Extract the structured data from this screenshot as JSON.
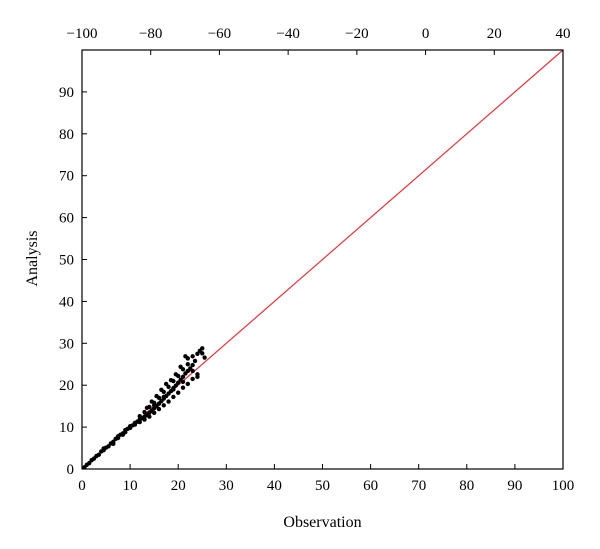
{
  "chart_data": {
    "type": "scatter",
    "xlabel": "Observation",
    "ylabel": "Analysis",
    "xlim": [
      0,
      100
    ],
    "ylim": [
      0,
      100
    ],
    "x_ticks": [
      0,
      10,
      20,
      30,
      40,
      50,
      60,
      70,
      80,
      90,
      100
    ],
    "y_ticks": [
      0,
      10,
      20,
      30,
      40,
      50,
      60,
      70,
      80,
      90
    ],
    "top_axis": {
      "lim": [
        -100,
        40
      ],
      "ticks": [
        -100,
        -80,
        -60,
        -40,
        -20,
        0,
        20,
        40
      ],
      "tick_labels": [
        "−100",
        "−80",
        "−60",
        "−40",
        "−20",
        "0",
        "20",
        "40"
      ]
    },
    "grid": false,
    "reference_line": {
      "from": [
        0,
        0
      ],
      "to": [
        100,
        100
      ],
      "color": "#e8333a"
    },
    "point_color": "#000000",
    "points": [
      [
        0.5,
        0.4
      ],
      [
        1.0,
        1.0
      ],
      [
        1.5,
        1.4
      ],
      [
        2.0,
        2.1
      ],
      [
        2.5,
        2.5
      ],
      [
        3.0,
        3.1
      ],
      [
        3.5,
        3.4
      ],
      [
        4.0,
        4.2
      ],
      [
        4.5,
        4.5
      ],
      [
        5.0,
        5.1
      ],
      [
        5.5,
        5.4
      ],
      [
        6.0,
        6.1
      ],
      [
        6.5,
        6.5
      ],
      [
        7.0,
        7.2
      ],
      [
        7.5,
        7.4
      ],
      [
        8.0,
        8.2
      ],
      [
        8.5,
        8.5
      ],
      [
        9.0,
        9.3
      ],
      [
        9.5,
        9.6
      ],
      [
        10.0,
        10.2
      ],
      [
        10.5,
        10.4
      ],
      [
        11.0,
        11.0
      ],
      [
        11.5,
        11.3
      ],
      [
        12.0,
        11.8
      ],
      [
        12.5,
        12.1
      ],
      [
        13.0,
        12.5
      ],
      [
        13.5,
        12.9
      ],
      [
        14.0,
        13.4
      ],
      [
        14.5,
        13.9
      ],
      [
        15.0,
        14.5
      ],
      [
        15.5,
        15.0
      ],
      [
        16.0,
        15.6
      ],
      [
        16.5,
        16.2
      ],
      [
        17.0,
        16.8
      ],
      [
        17.5,
        17.4
      ],
      [
        18.0,
        18.0
      ],
      [
        18.5,
        18.6
      ],
      [
        19.0,
        19.3
      ],
      [
        19.5,
        19.9
      ],
      [
        20.0,
        20.6
      ],
      [
        20.5,
        21.3
      ],
      [
        21.0,
        22.0
      ],
      [
        21.5,
        22.8
      ],
      [
        22.0,
        23.4
      ],
      [
        22.5,
        24.0
      ],
      [
        23.0,
        24.8
      ],
      [
        9.0,
        8.8
      ],
      [
        10.0,
        9.8
      ],
      [
        11.0,
        10.6
      ],
      [
        12.0,
        11.2
      ],
      [
        13.0,
        11.8
      ],
      [
        14.0,
        12.5
      ],
      [
        15.0,
        13.4
      ],
      [
        16.0,
        14.3
      ],
      [
        17.0,
        15.2
      ],
      [
        18.0,
        16.1
      ],
      [
        19.0,
        17.2
      ],
      [
        20.0,
        18.2
      ],
      [
        21.0,
        19.4
      ],
      [
        22.0,
        20.3
      ],
      [
        23.0,
        21.5
      ],
      [
        24.0,
        22.6
      ],
      [
        12.0,
        12.6
      ],
      [
        13.0,
        13.6
      ],
      [
        14.0,
        14.8
      ],
      [
        15.0,
        15.8
      ],
      [
        16.0,
        17.0
      ],
      [
        17.0,
        18.4
      ],
      [
        18.0,
        19.6
      ],
      [
        19.0,
        21.0
      ],
      [
        20.0,
        22.2
      ],
      [
        21.0,
        23.8
      ],
      [
        22.0,
        25.0
      ],
      [
        22.0,
        26.4
      ],
      [
        23.0,
        26.9
      ],
      [
        24.0,
        27.5
      ],
      [
        24.5,
        28.2
      ],
      [
        25.0,
        28.8
      ],
      [
        25.0,
        27.6
      ],
      [
        23.5,
        25.8
      ],
      [
        21.5,
        26.9
      ],
      [
        20.5,
        24.4
      ],
      [
        19.5,
        22.6
      ],
      [
        18.5,
        21.2
      ],
      [
        17.5,
        20.3
      ],
      [
        16.5,
        18.9
      ],
      [
        15.5,
        17.4
      ],
      [
        14.5,
        16.1
      ],
      [
        13.5,
        14.6
      ],
      [
        24.0,
        22.0
      ],
      [
        25.5,
        26.6
      ],
      [
        23.0,
        23.4
      ],
      [
        21.0,
        20.8
      ],
      [
        19.0,
        19.0
      ],
      [
        17.0,
        17.2
      ],
      [
        15.0,
        15.2
      ],
      [
        6.5,
        6.0
      ],
      [
        7.5,
        7.8
      ],
      [
        8.5,
        8.2
      ],
      [
        4.5,
        4.9
      ]
    ]
  }
}
